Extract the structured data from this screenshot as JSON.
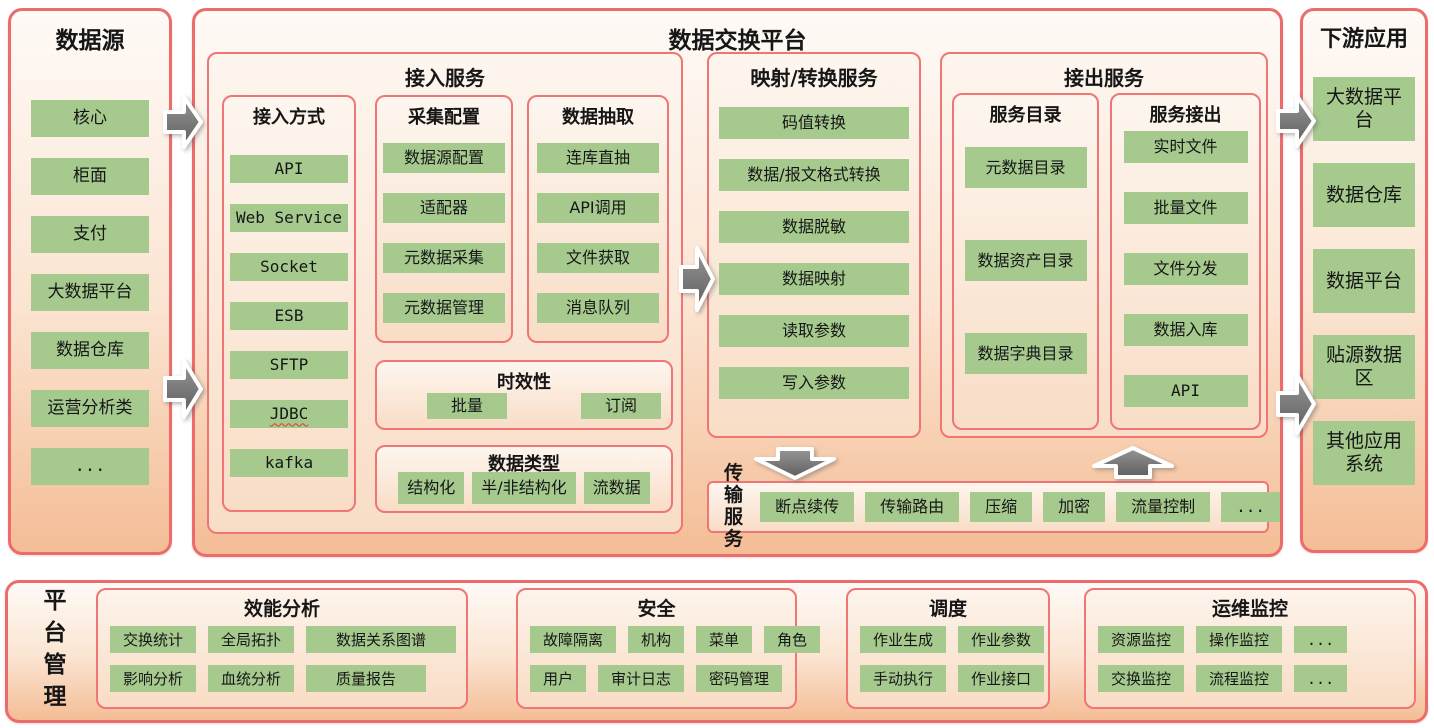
{
  "colors": {
    "border_red": "#ec6b6b",
    "chip_green": "#a6ca8e",
    "panel_peach_top": "#fefaf7",
    "panel_peach_bottom": "#f4bd96",
    "arrow_gray": "#6b6b6b"
  },
  "misc": {
    "spellcheck_item": "JDBC"
  },
  "data_source": {
    "title": "数据源",
    "items": [
      "核心",
      "柜面",
      "支付",
      "大数据平台",
      "数据仓库",
      "运营分析类",
      "..."
    ]
  },
  "platform": {
    "title": "数据交换平台",
    "access_service": {
      "title": "接入服务",
      "access_methods": {
        "title": "接入方式",
        "items": [
          "API",
          "Web Service",
          "Socket",
          "ESB",
          "SFTP",
          "JDBC",
          "kafka"
        ]
      },
      "collect_config": {
        "title": "采集配置",
        "items": [
          "数据源配置",
          "适配器",
          "元数据采集",
          "元数据管理"
        ]
      },
      "data_extract": {
        "title": "数据抽取",
        "items": [
          "连库直抽",
          "API调用",
          "文件获取",
          "消息队列"
        ]
      },
      "timeliness": {
        "title": "时效性",
        "items": [
          "批量",
          "订阅"
        ]
      },
      "data_types": {
        "title": "数据类型",
        "items": [
          "结构化",
          "半/非结构化",
          "流数据"
        ]
      }
    },
    "mapping_service": {
      "title": "映射/转换服务",
      "items": [
        "码值转换",
        "数据/报文格式转换",
        "数据脱敏",
        "数据映射",
        "读取参数",
        "写入参数"
      ]
    },
    "output_service": {
      "title": "接出服务",
      "service_catalog": {
        "title": "服务目录",
        "items": [
          "元数据目录",
          "数据资产目录",
          "数据字典目录"
        ]
      },
      "service_output": {
        "title": "服务接出",
        "items": [
          "实时文件",
          "批量文件",
          "文件分发",
          "数据入库",
          "API"
        ]
      }
    },
    "transfer_service": {
      "title": "传输\n服务",
      "items": [
        "断点续传",
        "传输路由",
        "压缩",
        "加密",
        "流量控制",
        "..."
      ]
    }
  },
  "downstream": {
    "title": "下游应用",
    "items": [
      "大数据平台",
      "数据仓库",
      "数据平台",
      "贴源数据区",
      "其他应用系统"
    ]
  },
  "management": {
    "title": "平台管理",
    "sections": [
      {
        "title": "效能分析",
        "rows": [
          [
            "交换统计",
            "全局拓扑",
            "数据关系图谱"
          ],
          [
            "影响分析",
            "血统分析",
            "质量报告"
          ]
        ]
      },
      {
        "title": "安全",
        "rows": [
          [
            "故障隔离",
            "机构",
            "菜单",
            "角色"
          ],
          [
            "用户",
            "审计日志",
            "密码管理"
          ]
        ]
      },
      {
        "title": "调度",
        "rows": [
          [
            "作业生成",
            "作业参数"
          ],
          [
            "手动执行",
            "作业接口"
          ]
        ]
      },
      {
        "title": "运维监控",
        "rows": [
          [
            "资源监控",
            "操作监控",
            "..."
          ],
          [
            "交换监控",
            "流程监控",
            "..."
          ]
        ]
      }
    ]
  }
}
